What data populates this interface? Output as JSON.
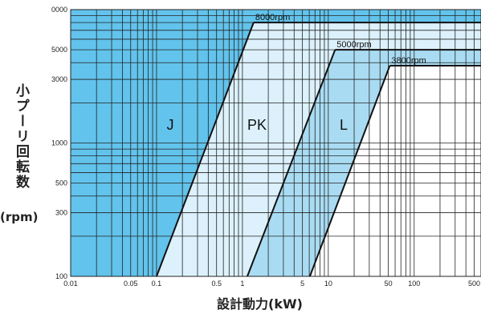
{
  "chart_data": {
    "type": "line",
    "log_x": true,
    "log_y": true,
    "grid": true,
    "x_label": "設計動力(kW)",
    "y_label": "小プーリ回転数",
    "y_unit": "(rpm)",
    "xlim": [
      0.01,
      600
    ],
    "ylim": [
      100,
      10000
    ],
    "xticks": [
      0.01,
      0.05,
      0.1,
      0.5,
      1,
      5,
      10,
      50,
      100,
      500
    ],
    "yticks": [
      100,
      300,
      500,
      1000,
      3000,
      5000,
      {
        "value": 10000,
        "label": "0000"
      }
    ],
    "xgrid": [
      0.02,
      0.03,
      0.04,
      0.06,
      0.07,
      0.08,
      0.09,
      0.2,
      0.3,
      0.4,
      0.6,
      0.7,
      0.8,
      0.9,
      2,
      3,
      4,
      6,
      7,
      8,
      9,
      20,
      30,
      40,
      60,
      70,
      80,
      90,
      200,
      300,
      400
    ],
    "ygrid": [
      200,
      400,
      600,
      700,
      800,
      900,
      2000,
      4000,
      6000,
      7000,
      8000,
      9000
    ],
    "regions": [
      {
        "label": "J",
        "color": "#62c3ec"
      },
      {
        "label": "PK",
        "color": "#dcf1fb"
      },
      {
        "label": "L",
        "color": "#a9dcf3"
      },
      {
        "color": "#ffffff"
      }
    ],
    "boundaries": [
      {
        "label": "8000rpm",
        "x": [
          0.1,
          1.35
        ],
        "y": [
          100,
          8000
        ]
      },
      {
        "label": "5000rpm",
        "x": [
          1.14,
          12
        ],
        "y": [
          100,
          5000
        ]
      },
      {
        "label": "3800rpm",
        "x": [
          6.1,
          52
        ],
        "y": [
          100,
          3800
        ]
      }
    ]
  }
}
